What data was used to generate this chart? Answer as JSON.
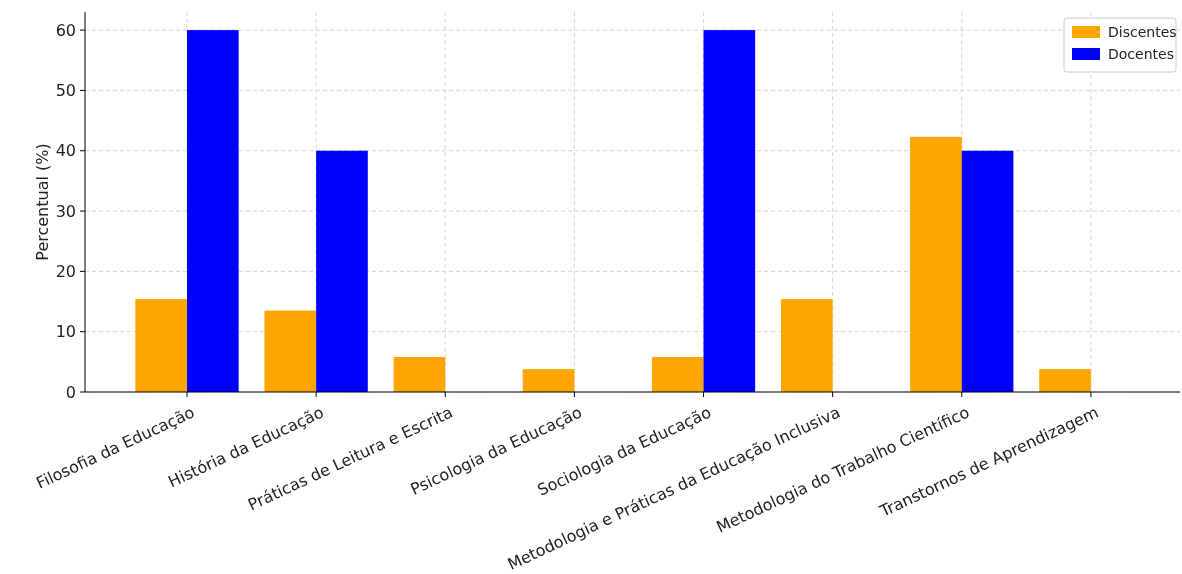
{
  "chart_data": {
    "type": "bar",
    "ylabel": "Percentual (%)",
    "categories": [
      "Filosofia da Educação",
      "História da Educação",
      "Práticas de Leitura e Escrita",
      "Psicologia da Educação",
      "Sociologia da Educação",
      "Metodologia e Práticas da Educação Inclusiva",
      "Metodologia do Trabalho Científico",
      "Transtornos de Aprendizagem"
    ],
    "series": [
      {
        "name": "Discentes",
        "color": "#ffa500",
        "values": [
          15.4,
          13.5,
          5.8,
          3.8,
          5.8,
          15.4,
          42.3,
          3.8
        ]
      },
      {
        "name": "Docentes",
        "color": "#0000ff",
        "values": [
          60,
          40,
          0,
          0,
          60,
          0,
          40,
          0
        ]
      }
    ],
    "ylim": [
      0,
      63
    ],
    "yticks": [
      0,
      10,
      20,
      30,
      40,
      50,
      60
    ],
    "grid": true,
    "legend": "top right"
  }
}
